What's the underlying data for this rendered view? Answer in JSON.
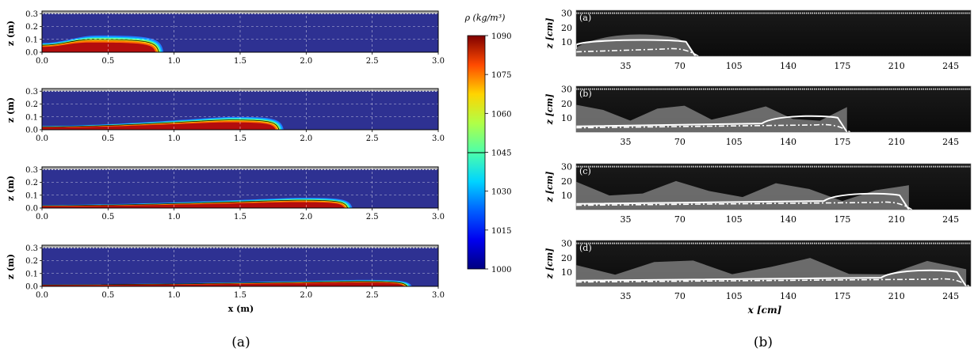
{
  "left_figure": {
    "caption": "(a)",
    "xlabel": "x (m)",
    "ylabel": "z (m)",
    "xticks": [
      "0.0",
      "0.5",
      "1.0",
      "1.5",
      "2.0",
      "2.5",
      "3.0"
    ],
    "yticks": [
      "0.0",
      "0.1",
      "0.2",
      "0.3"
    ],
    "colorbar": {
      "label": "ρ (kg/m³)",
      "ticks": [
        "1090",
        "1075",
        "1060",
        "1045",
        "1030",
        "1015",
        "1000"
      ],
      "min": 1000,
      "max": 1090
    }
  },
  "right_figure": {
    "caption": "(b)",
    "xlabel": "x  [cm]",
    "ylabel": "z  [cm]",
    "xticks": [
      "35",
      "70",
      "105",
      "140",
      "175",
      "210",
      "245"
    ],
    "yticks": [
      "30",
      "20",
      "10"
    ],
    "panel_labels": [
      "(a)",
      "(b)",
      "(c)",
      "(d)"
    ]
  },
  "chart_data": [
    {
      "type": "heatmap",
      "title": "",
      "xlabel": "x (m)",
      "ylabel": "z (m)",
      "xlim": [
        0.0,
        3.0
      ],
      "ylim": [
        0.0,
        0.32
      ],
      "colorbar_range": [
        1000,
        1090
      ],
      "colorbar_label": "ρ (kg/m³)",
      "panels": [
        {
          "front_x": 0.92,
          "head_height": 0.13
        },
        {
          "front_x": 1.83,
          "head_height": 0.1
        },
        {
          "front_x": 2.35,
          "head_height": 0.08
        },
        {
          "front_x": 2.8,
          "head_height": 0.05
        }
      ]
    },
    {
      "type": "other",
      "title": "",
      "xlabel": "x  [cm]",
      "ylabel": "z  [cm]",
      "xticks": [
        35,
        70,
        105,
        140,
        175,
        210,
        245
      ],
      "yticks": [
        10,
        20,
        30
      ],
      "panels": [
        {
          "label": "(a)",
          "front_x": 80
        },
        {
          "label": "(b)",
          "front_x": 178
        },
        {
          "label": "(c)",
          "front_x": 218
        },
        {
          "label": "(d)",
          "front_x": 255
        }
      ]
    }
  ]
}
